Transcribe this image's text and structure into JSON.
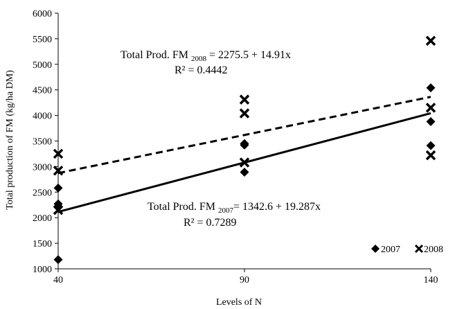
{
  "chart_data": {
    "type": "scatter",
    "xlabel": "Levels of N",
    "ylabel": "Total production of FM (kg/ha DM)",
    "x_ticks": [
      40,
      90,
      140
    ],
    "y_ticks": [
      1000,
      1500,
      2000,
      2500,
      3000,
      3500,
      4000,
      4500,
      5000,
      5500,
      6000
    ],
    "xlim": [
      40,
      140
    ],
    "ylim": [
      1000,
      6000
    ],
    "grid": false,
    "legend_position": "bottom-right",
    "series": [
      {
        "name": "2007",
        "marker": "diamond",
        "color": "#000000",
        "x": [
          40,
          40,
          40,
          40,
          90,
          90,
          90,
          140,
          140,
          140
        ],
        "y": [
          2580,
          2270,
          2200,
          1180,
          3450,
          3420,
          2890,
          4540,
          3880,
          3410
        ],
        "trendline": {
          "intercept": 1342.6,
          "slope": 19.287,
          "style": "solid"
        }
      },
      {
        "name": "2008",
        "marker": "x",
        "color": "#000000",
        "x": [
          40,
          40,
          40,
          90,
          90,
          90,
          140,
          140,
          140
        ],
        "y": [
          3250,
          2920,
          2150,
          4310,
          4040,
          3080,
          5460,
          4150,
          3220
        ],
        "trendline": {
          "intercept": 2275.5,
          "slope": 14.91,
          "style": "dashed"
        }
      }
    ],
    "annotations": {
      "eq2008": {
        "prefix": "Total Prod. FM ",
        "subscript": "2008",
        "rest": " = 2275.5 + 14.91x",
        "r2": "R² = 0.4442"
      },
      "eq2007": {
        "prefix": "Total Prod. FM ",
        "subscript": "2007",
        "rest": "= 1342.6 + 19.287x",
        "r2": "R² = 0.7289"
      }
    }
  }
}
